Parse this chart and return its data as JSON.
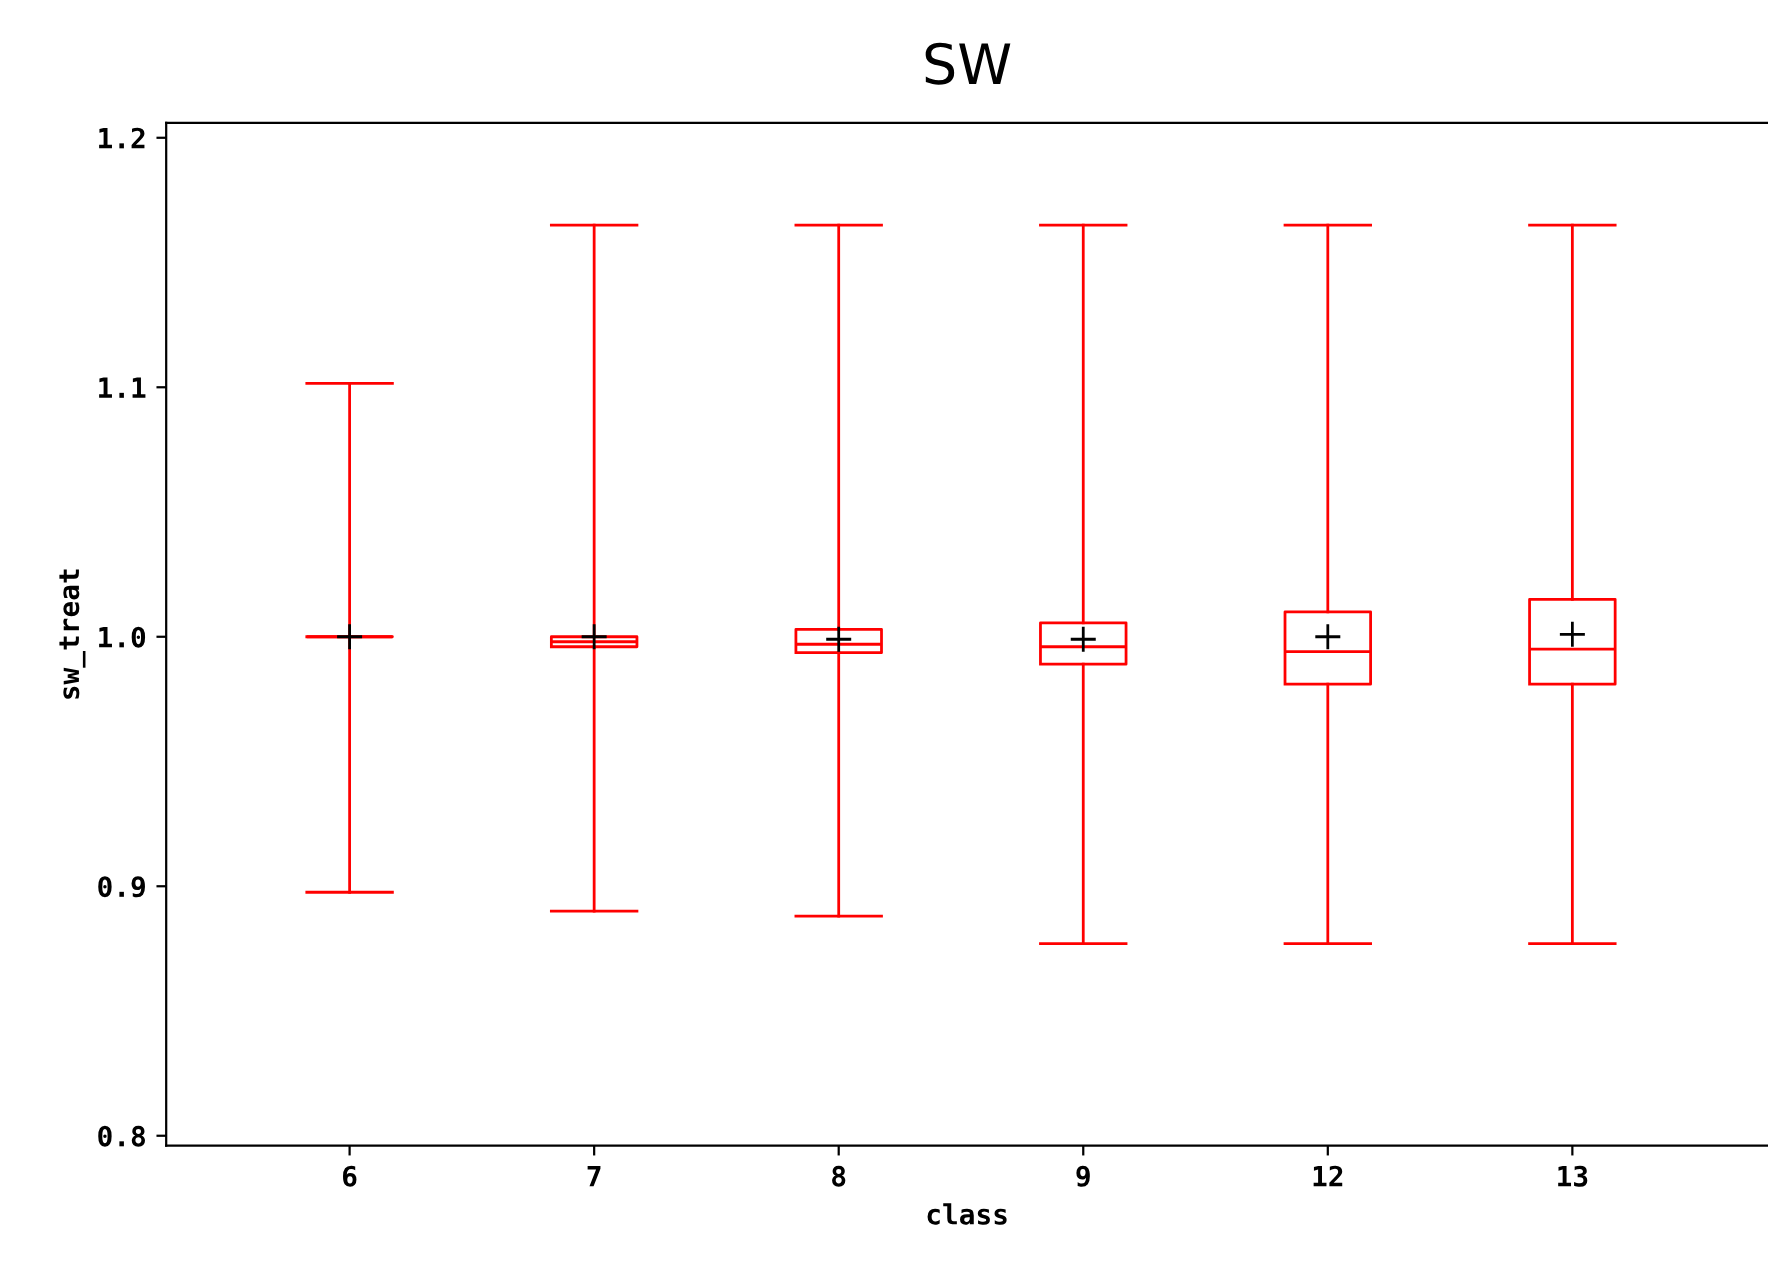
{
  "chart_data": {
    "type": "box",
    "title": "SW",
    "xlabel": "class",
    "ylabel": "sw_treat",
    "categories": [
      "6",
      "7",
      "8",
      "9",
      "12",
      "13"
    ],
    "color": "#ff0000",
    "marker": "cross",
    "boxes": [
      {
        "low": 0.8976,
        "q1": 1.0,
        "median": 1.0,
        "q3": 1.0,
        "high": 1.1016,
        "mean": 1.0
      },
      {
        "low": 0.89,
        "q1": 0.996,
        "median": 0.998,
        "q3": 1.0,
        "high": 1.165,
        "mean": 1.0
      },
      {
        "low": 0.888,
        "q1": 0.9936,
        "median": 0.997,
        "q3": 1.003,
        "high": 1.165,
        "mean": 0.999
      },
      {
        "low": 0.877,
        "q1": 0.989,
        "median": 0.996,
        "q3": 1.0056,
        "high": 1.165,
        "mean": 0.999
      },
      {
        "low": 0.877,
        "q1": 0.981,
        "median": 0.994,
        "q3": 1.01,
        "high": 1.165,
        "mean": 1.0
      },
      {
        "low": 0.877,
        "q1": 0.981,
        "median": 0.995,
        "q3": 1.015,
        "high": 1.165,
        "mean": 1.001
      }
    ],
    "ylim": [
      0.796,
      1.206
    ],
    "yticks": [
      {
        "value": 0.8,
        "label": "0.8"
      },
      {
        "value": 0.9,
        "label": "0.9"
      },
      {
        "value": 1.0,
        "label": "1.0"
      },
      {
        "value": 1.1,
        "label": "1.1"
      },
      {
        "value": 1.2,
        "label": "1.2"
      }
    ],
    "grid": false
  }
}
